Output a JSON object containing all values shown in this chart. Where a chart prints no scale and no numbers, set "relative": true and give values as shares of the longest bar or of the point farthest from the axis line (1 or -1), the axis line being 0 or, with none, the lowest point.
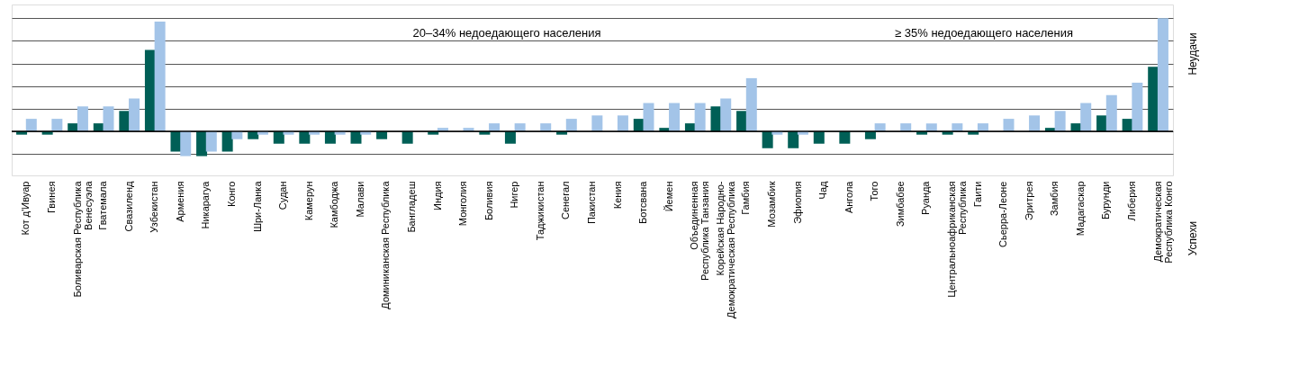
{
  "chart_data": {
    "type": "bar",
    "relative": true,
    "grid": "y",
    "categories": [
      "Кот д'Ивуар",
      "Гвинея",
      "Боливарская Республика\nВенесуэла",
      "Гватемала",
      "Свазиленд",
      "Узбекистан",
      "Армения",
      "Никарагуа",
      "Конго",
      "Шри-Ланка",
      "Судан",
      "Камерун",
      "Камбоджа",
      "Малави",
      "Доминиканская Республика",
      "Бангладеш",
      "Индия",
      "Монголия",
      "Боливия",
      "Нигер",
      "Таджикистан",
      "Сенегал",
      "Пакистан",
      "Кения",
      "Ботсвана",
      "Йемен",
      "Объединенная\nРеспублика Танзания",
      "Корейская Народно-\nДемократическая Республика",
      "Гамбия",
      "Мозамбик",
      "Эфиопия",
      "Чад",
      "Ангола",
      "Того",
      "Зимбабве",
      "Руанда",
      "Центральноафриканская\nРеспублика",
      "Гаити",
      "Сьерра-Леоне",
      "Эритрея",
      "Замбия",
      "Мадагаскар",
      "Бурунди",
      "Либерия",
      "Демократическая\nРеспублика Конго"
    ],
    "series": [
      {
        "color": "#005f56",
        "values": [
          -0.03,
          -0.03,
          0.07,
          0.07,
          0.18,
          0.72,
          -0.18,
          -0.22,
          -0.18,
          -0.07,
          -0.11,
          -0.11,
          -0.11,
          -0.11,
          -0.07,
          -0.11,
          -0.03,
          0,
          -0.03,
          -0.11,
          0,
          -0.03,
          0,
          0,
          0.11,
          0.03,
          0.07,
          0.22,
          0.18,
          -0.15,
          -0.15,
          -0.11,
          -0.11,
          -0.07,
          0,
          -0.03,
          -0.03,
          -0.03,
          0,
          0,
          0.03,
          0.07,
          0.14,
          0.11,
          0.57
        ]
      },
      {
        "color": "#a3c4e8",
        "values": [
          0.11,
          0.11,
          0.22,
          0.22,
          0.29,
          0.97,
          -0.22,
          -0.18,
          -0.07,
          -0.03,
          -0.03,
          -0.03,
          -0.03,
          -0.03,
          0,
          0,
          0.03,
          0.03,
          0.07,
          0.07,
          0.07,
          0.11,
          0.14,
          0.14,
          0.25,
          0.25,
          0.25,
          0.29,
          0.47,
          -0.03,
          -0.03,
          0,
          0,
          0.07,
          0.07,
          0.07,
          0.07,
          0.07,
          0.11,
          0.14,
          0.18,
          0.25,
          0.32,
          0.43,
          1
        ]
      }
    ],
    "annotations": [
      "20–34% недоедающего населения",
      "≥ 35% недоедающего населения",
      "Неудачи",
      "Успехи"
    ]
  }
}
